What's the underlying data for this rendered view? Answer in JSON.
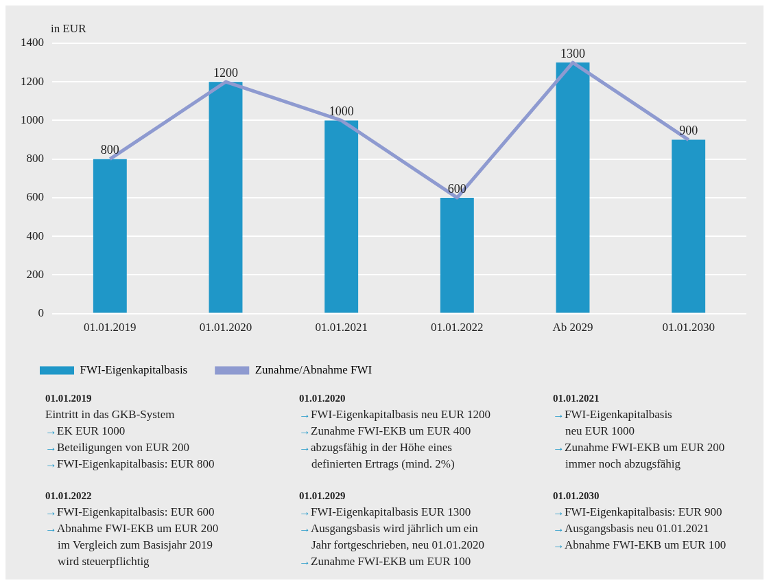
{
  "chart_data": {
    "type": "bar",
    "ylabel": "in EUR",
    "categories": [
      "01.01.2019",
      "01.01.2020",
      "01.01.2021",
      "01.01.2022",
      "Ab 2029",
      "01.01.2030"
    ],
    "series": [
      {
        "name": "FWI-Eigenkapitalbasis",
        "color": "#1f97c8",
        "values": [
          800,
          1200,
          1000,
          600,
          1300,
          900
        ],
        "value_labels": [
          "800",
          "1200",
          "1000",
          "600",
          "1300",
          "900"
        ]
      },
      {
        "name": "Zunahme/Abnahme FWI",
        "type": "line",
        "color": "#8e9ad0",
        "values": [
          800,
          1200,
          1000,
          600,
          1300,
          900
        ]
      }
    ],
    "ylim": [
      0,
      1400
    ],
    "yticks": [
      0,
      200,
      400,
      600,
      800,
      1000,
      1200,
      1400
    ],
    "grid": "y",
    "legend": "bottom",
    "marker": "none",
    "annotations": [
      "01.01.2019\nEintritt in das GKB-System\n→EK EUR 1000\n→Beteiligungen von EUR 200\n→FWI-Eigenkapitalbasis: EUR 800",
      "01.01.2020\n→FWI-Eigenkapitalbasis neu EUR 1200\n→Zunahme FWI-EKB um EUR 400\n→abzugsfähig in der Höhe eines\ndefinierten Ertrags (mind. 2%)",
      "01.01.2021\n→FWI-Eigenkapitalbasis\nneu EUR 1000\n→Zunahme FWI-EKB um EUR 200\nimmer noch abzugsfähig",
      "01.01.2022\n→FWI-Eigenkapitalbasis: EUR 600\n→Abnahme FWI-EKB um EUR 200\nim Vergleich zum Basisjahr 2019\nwird steuerpflichtig",
      "01.01.2029\n→FWI-Eigenkapitalbasis EUR 1300\n→Ausgangsbasis wird jährlich um ein\nJahr fortgeschrieben, neu 01.01.2020\n→Zunahme FWI-EKB um EUR 100",
      "01.01.2030\n→FWI-Eigenkapitalbasis: EUR 900\n→Ausgangsbasis neu 01.01.2021\n→Abnahme FWI-EKB um EUR 100"
    ]
  }
}
